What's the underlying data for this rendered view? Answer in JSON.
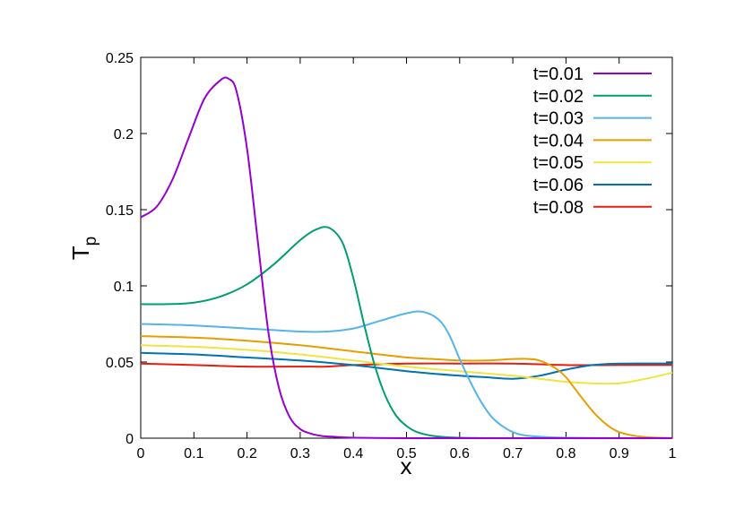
{
  "chart_data": {
    "type": "line",
    "xlabel": "x",
    "ylabel": {
      "main": "T",
      "sub": "p"
    },
    "xlim": [
      0,
      1
    ],
    "ylim": [
      0,
      0.25
    ],
    "xticks": [
      "0",
      "0.1",
      "0.2",
      "0.3",
      "0.4",
      "0.5",
      "0.6",
      "0.7",
      "0.8",
      "0.9",
      "1"
    ],
    "yticks": [
      "0",
      "0.05",
      "0.1",
      "0.15",
      "0.2",
      "0.25"
    ],
    "grid": false,
    "legend_position": "top-right",
    "series": [
      {
        "name": "t=0.01",
        "color": "#9400d3",
        "x": [
          0,
          0.03,
          0.06,
          0.09,
          0.12,
          0.15,
          0.165,
          0.18,
          0.2,
          0.22,
          0.24,
          0.26,
          0.28,
          0.3,
          0.32,
          0.34,
          0.36,
          0.4,
          0.5,
          0.6,
          0.8,
          1.0
        ],
        "y": [
          0.145,
          0.152,
          0.17,
          0.197,
          0.223,
          0.235,
          0.236,
          0.228,
          0.19,
          0.13,
          0.07,
          0.033,
          0.014,
          0.006,
          0.003,
          0.0015,
          0.001,
          0.0003,
          0,
          0,
          0,
          0
        ]
      },
      {
        "name": "t=0.02",
        "color": "#009e73",
        "x": [
          0,
          0.05,
          0.1,
          0.15,
          0.2,
          0.25,
          0.3,
          0.33,
          0.355,
          0.38,
          0.4,
          0.42,
          0.44,
          0.46,
          0.48,
          0.5,
          0.52,
          0.55,
          0.6,
          0.7,
          0.8,
          1.0
        ],
        "y": [
          0.088,
          0.088,
          0.089,
          0.093,
          0.101,
          0.114,
          0.13,
          0.137,
          0.138,
          0.128,
          0.105,
          0.075,
          0.048,
          0.028,
          0.015,
          0.008,
          0.004,
          0.0015,
          0.0003,
          0,
          0,
          0
        ]
      },
      {
        "name": "t=0.03",
        "color": "#56b4e9",
        "x": [
          0,
          0.1,
          0.2,
          0.3,
          0.35,
          0.4,
          0.45,
          0.5,
          0.53,
          0.56,
          0.58,
          0.6,
          0.62,
          0.64,
          0.66,
          0.68,
          0.7,
          0.72,
          0.75,
          0.8,
          0.9,
          1.0
        ],
        "y": [
          0.075,
          0.074,
          0.072,
          0.07,
          0.07,
          0.072,
          0.077,
          0.082,
          0.083,
          0.078,
          0.068,
          0.052,
          0.037,
          0.024,
          0.014,
          0.008,
          0.004,
          0.002,
          0.001,
          0.0003,
          0,
          0
        ]
      },
      {
        "name": "t=0.04",
        "color": "#e69f00",
        "x": [
          0,
          0.1,
          0.2,
          0.3,
          0.4,
          0.5,
          0.55,
          0.6,
          0.65,
          0.7,
          0.73,
          0.75,
          0.78,
          0.8,
          0.82,
          0.84,
          0.86,
          0.88,
          0.9,
          0.93,
          0.96,
          1.0
        ],
        "y": [
          0.067,
          0.066,
          0.064,
          0.061,
          0.057,
          0.053,
          0.052,
          0.051,
          0.051,
          0.052,
          0.052,
          0.051,
          0.046,
          0.04,
          0.031,
          0.022,
          0.014,
          0.008,
          0.004,
          0.0015,
          0.0005,
          0.0001
        ]
      },
      {
        "name": "t=0.05",
        "color": "#f0e442",
        "x": [
          0,
          0.1,
          0.2,
          0.3,
          0.4,
          0.5,
          0.6,
          0.7,
          0.75,
          0.8,
          0.85,
          0.9,
          0.95,
          1.0
        ],
        "y": [
          0.061,
          0.06,
          0.058,
          0.055,
          0.051,
          0.047,
          0.044,
          0.041,
          0.039,
          0.037,
          0.036,
          0.036,
          0.039,
          0.043
        ]
      },
      {
        "name": "t=0.06",
        "color": "#0072b2",
        "x": [
          0,
          0.1,
          0.2,
          0.3,
          0.4,
          0.5,
          0.6,
          0.65,
          0.7,
          0.75,
          0.8,
          0.85,
          0.9,
          1.0
        ],
        "y": [
          0.056,
          0.055,
          0.053,
          0.051,
          0.048,
          0.044,
          0.041,
          0.04,
          0.039,
          0.041,
          0.045,
          0.048,
          0.049,
          0.049
        ]
      },
      {
        "name": "t=0.08",
        "color": "#e51e10",
        "x": [
          0,
          0.1,
          0.2,
          0.3,
          0.35,
          0.4,
          0.5,
          0.6,
          0.7,
          0.8,
          0.9,
          1.0
        ],
        "y": [
          0.049,
          0.048,
          0.047,
          0.047,
          0.047,
          0.048,
          0.049,
          0.049,
          0.049,
          0.048,
          0.048,
          0.048
        ]
      }
    ]
  }
}
